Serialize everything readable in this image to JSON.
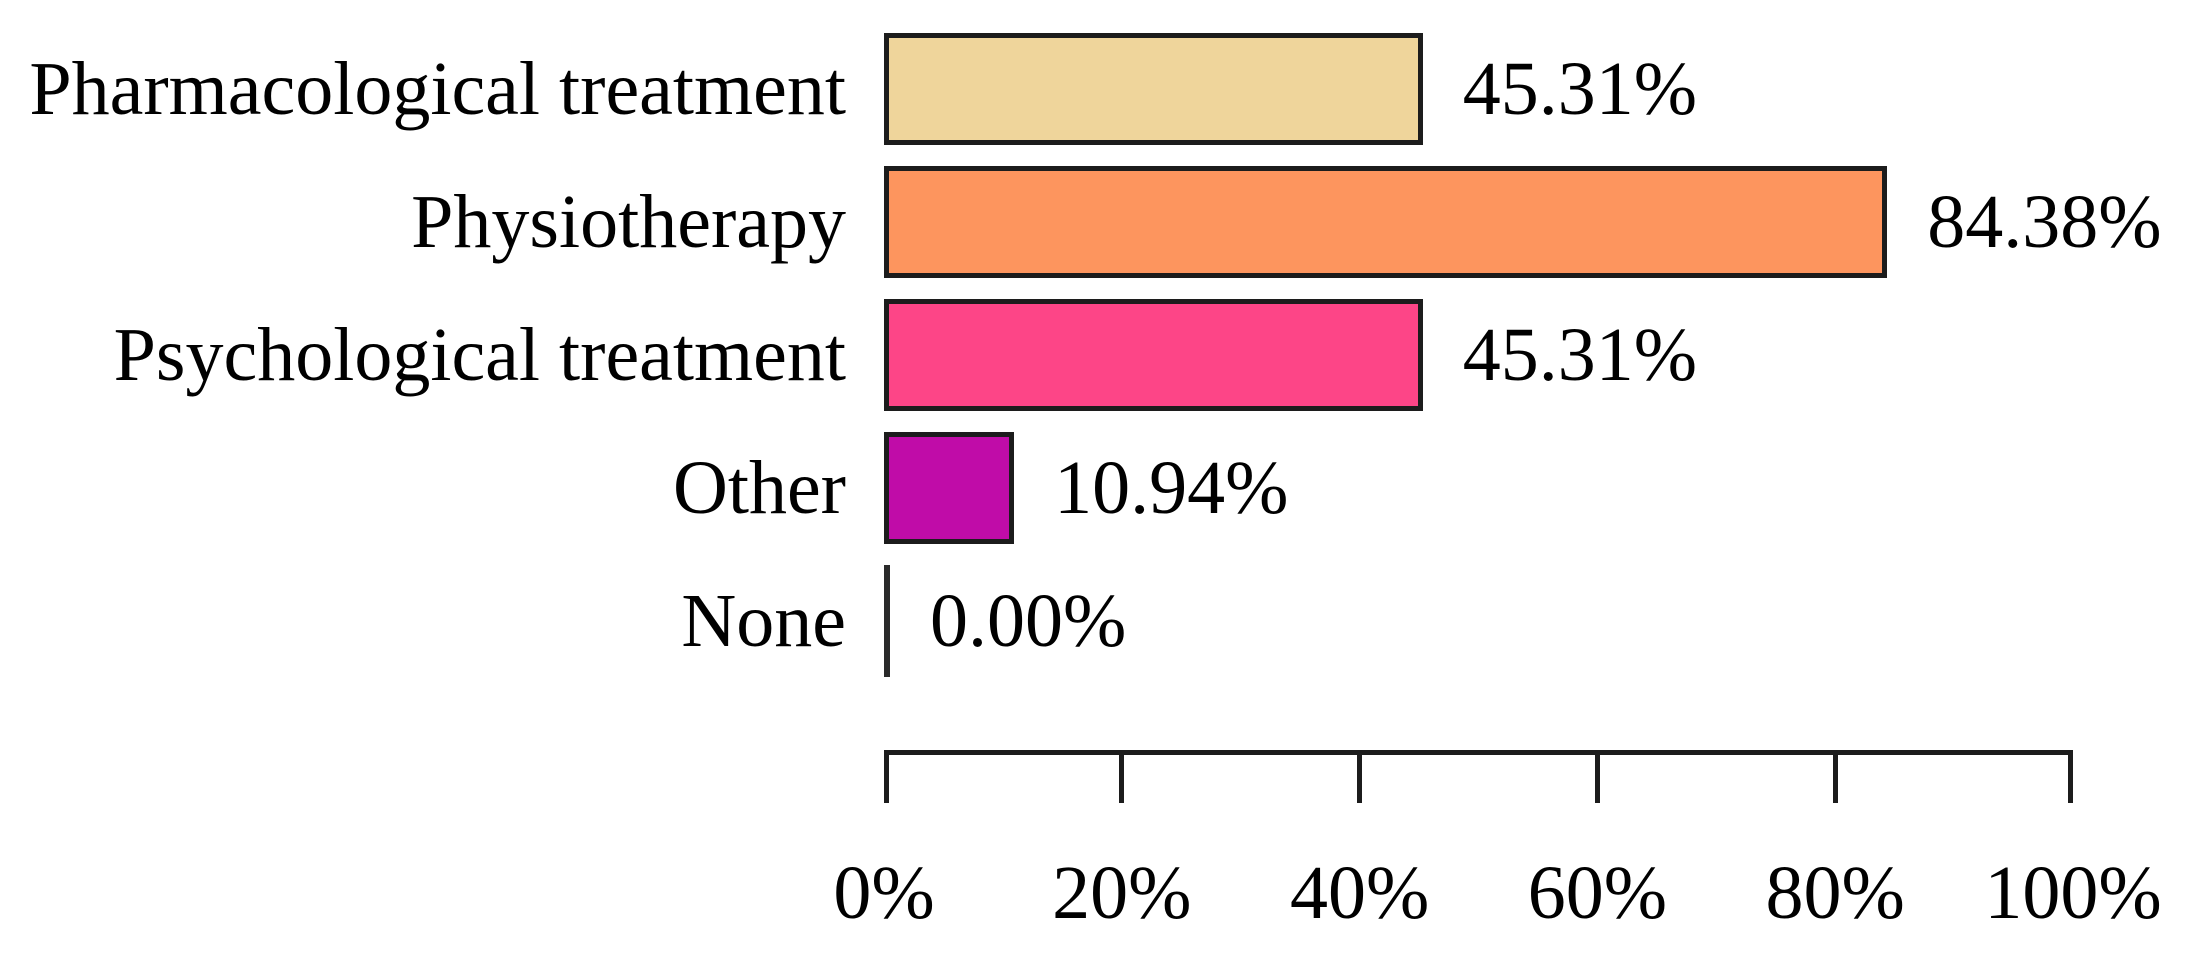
{
  "chart_data": {
    "type": "bar",
    "orientation": "horizontal",
    "title": "",
    "xlabel": "",
    "ylabel": "",
    "categories": [
      "Pharmacological treatment",
      "Physiotherapy",
      "Psychological treatment",
      "Other",
      "None"
    ],
    "values": [
      45.31,
      84.38,
      45.31,
      10.94,
      0.0
    ],
    "value_labels": [
      "45.31%",
      "84.38%",
      "45.31%",
      "10.94%",
      "0.00%"
    ],
    "bar_colors": [
      "#efd59b",
      "#fd955e",
      "#fd4587",
      "#c00ca8",
      "#2a2a2a"
    ],
    "bar_border_color": "#1c1c1c",
    "x_axis": {
      "range": [
        0,
        100
      ],
      "ticks": [
        0,
        20,
        40,
        60,
        80,
        100
      ],
      "tick_labels": [
        "0%",
        "20%",
        "40%",
        "60%",
        "80%",
        "100%"
      ]
    },
    "grid": "off",
    "legend": "none"
  }
}
